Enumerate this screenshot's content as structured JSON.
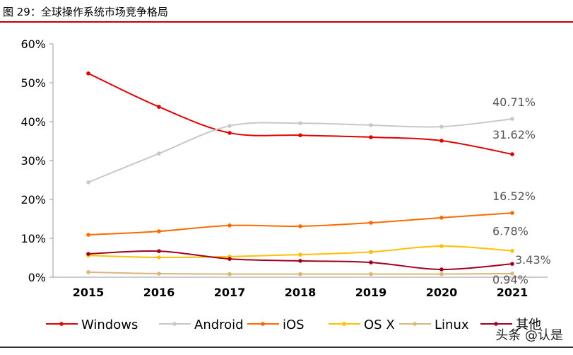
{
  "title": "图 29：全球操作系统市场竞争格局",
  "watermark": "头条 @认是",
  "chart_data": {
    "type": "line",
    "title": "图 29：全球操作系统市场竞争格局",
    "x": [
      "2015",
      "2016",
      "2017",
      "2018",
      "2019",
      "2020",
      "2021"
    ],
    "ylim": [
      0,
      60
    ],
    "yticks": [
      "0%",
      "10%",
      "20%",
      "30%",
      "40%",
      "50%",
      "60%"
    ],
    "grid": false,
    "legend": "bottom",
    "series": [
      {
        "name": "Windows",
        "color": "#e00000",
        "values": [
          52.4,
          43.8,
          37.1,
          36.5,
          36.0,
          35.1,
          31.62
        ],
        "end_label": "31.62%"
      },
      {
        "name": "Android",
        "color": "#c8c8c8",
        "values": [
          24.4,
          31.8,
          38.9,
          39.6,
          39.1,
          38.7,
          40.71
        ],
        "end_label": "40.71%"
      },
      {
        "name": "iOS",
        "color": "#ff6a00",
        "values": [
          10.9,
          11.8,
          13.3,
          13.1,
          14.0,
          15.3,
          16.52
        ],
        "end_label": "16.52%"
      },
      {
        "name": "OS X",
        "color": "#ffc000",
        "values": [
          5.6,
          5.1,
          5.3,
          5.8,
          6.5,
          8.0,
          6.78
        ],
        "end_label": "6.78%"
      },
      {
        "name": "Linux",
        "color": "#d9b77a",
        "values": [
          1.3,
          0.9,
          0.8,
          0.8,
          0.8,
          0.8,
          0.94
        ],
        "end_label": "0.94%"
      },
      {
        "name": "其他",
        "color": "#a0001e",
        "values": [
          6.0,
          6.7,
          4.7,
          4.2,
          3.8,
          2.0,
          3.43
        ],
        "end_label": "3.43%"
      }
    ]
  }
}
